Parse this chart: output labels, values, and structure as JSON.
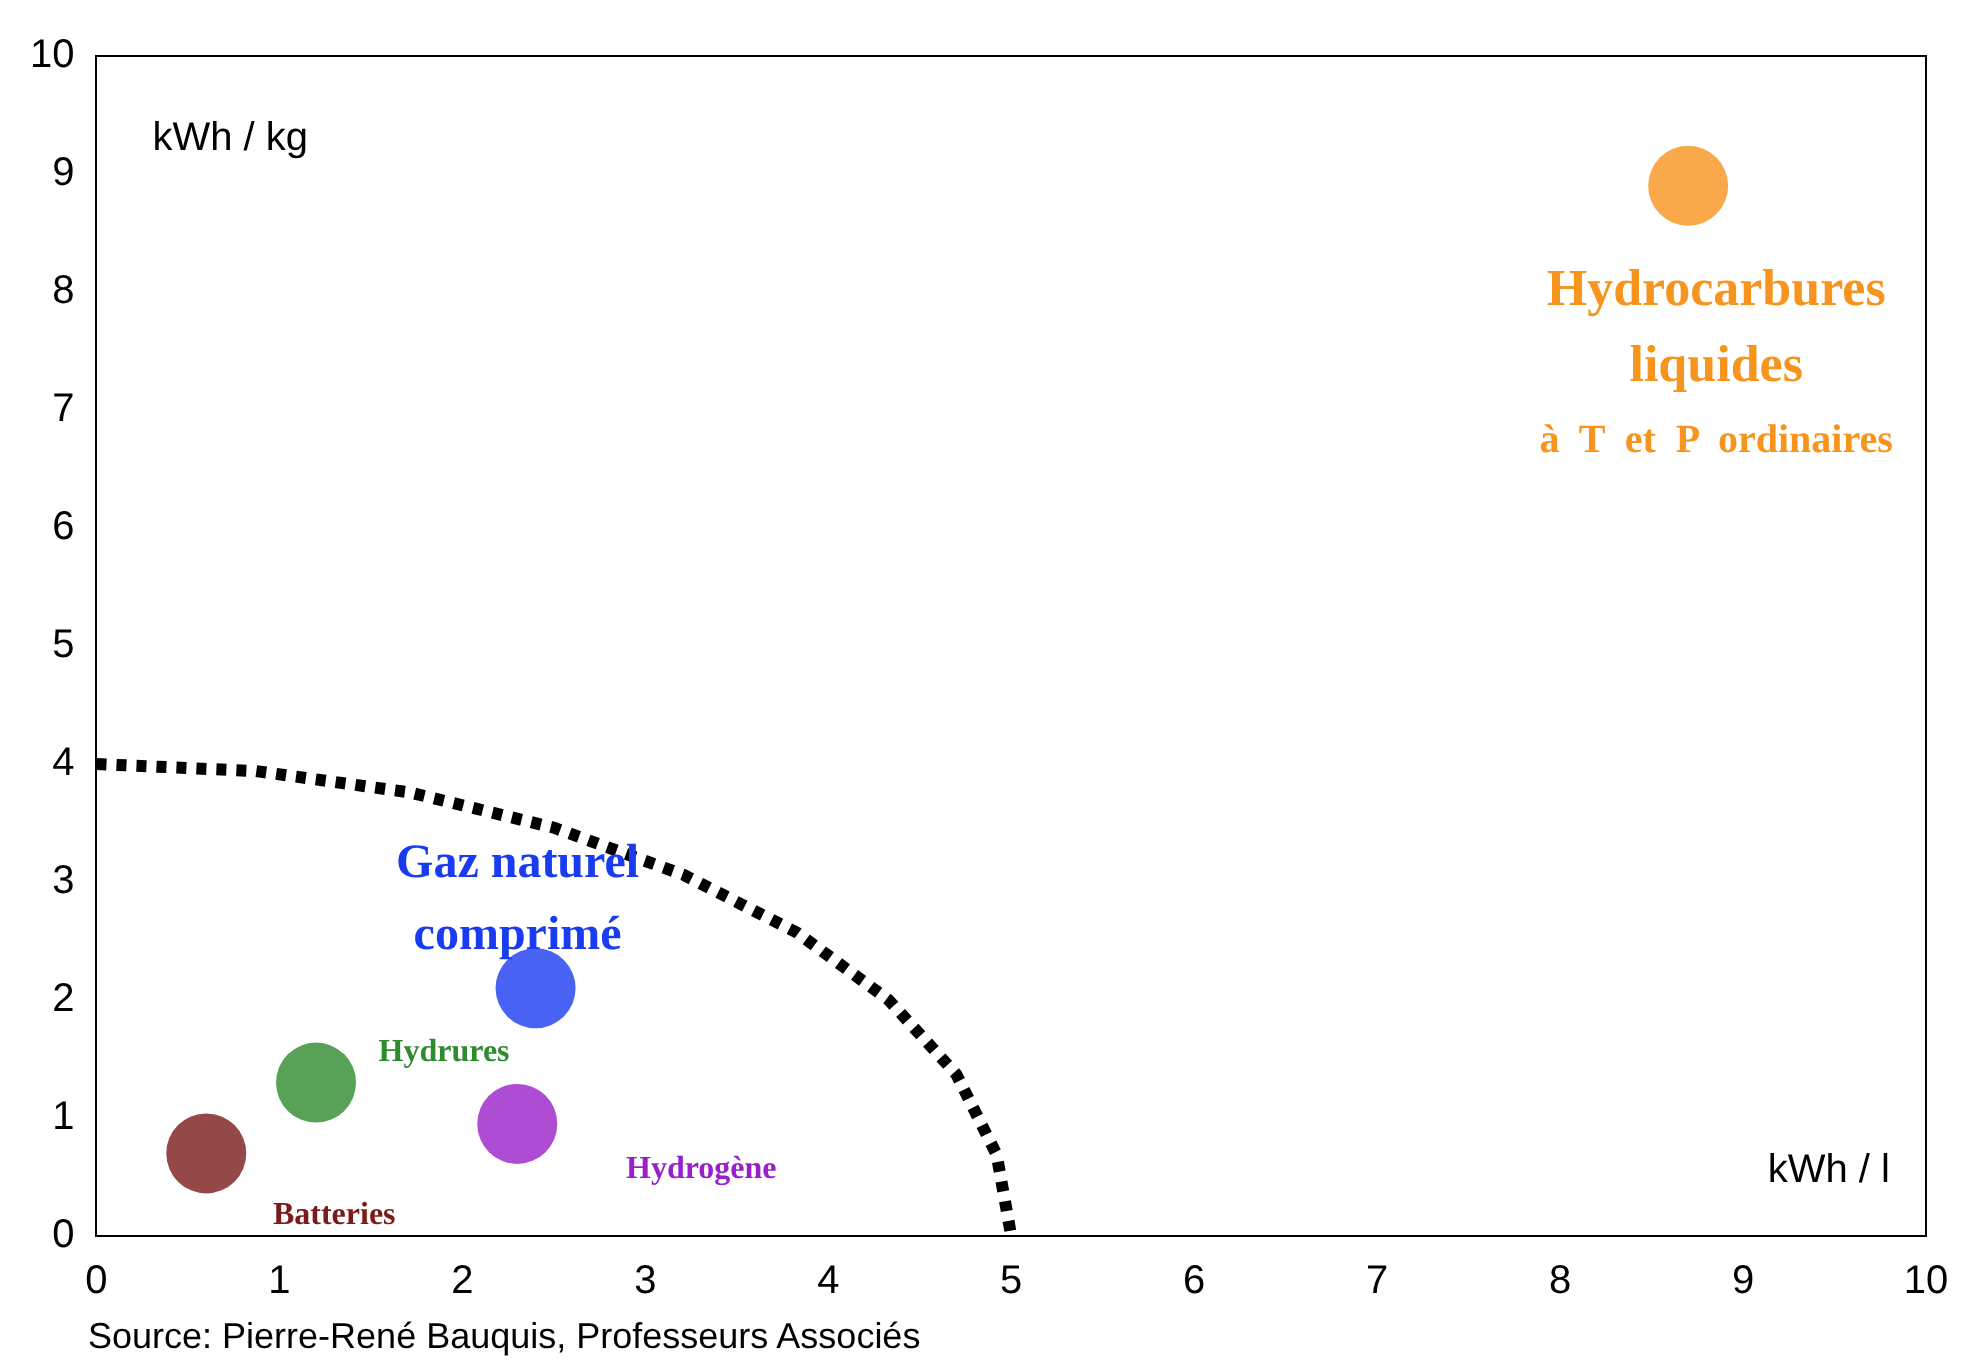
{
  "chart_data": {
    "type": "scatter",
    "xlabel": "kWh / l",
    "ylabel": "kWh / kg",
    "xlim": [
      0,
      10
    ],
    "ylim": [
      0,
      10
    ],
    "xticks": [
      0,
      1,
      2,
      3,
      4,
      5,
      6,
      7,
      8,
      9,
      10
    ],
    "yticks": [
      0,
      1,
      2,
      3,
      4,
      5,
      6,
      7,
      8,
      9,
      10
    ],
    "grid": false,
    "legend": false,
    "marker": "circle",
    "series": [
      {
        "name": "Hydrocarbures liquides",
        "color": "#f7941d",
        "x": [
          8.7
        ],
        "values": [
          8.9
        ]
      },
      {
        "name": "Gaz naturel comprimé",
        "color": "#1a3cf0",
        "x": [
          2.4
        ],
        "values": [
          2.1
        ]
      },
      {
        "name": "Hydrures",
        "color": "#2e8b2e",
        "x": [
          1.2
        ],
        "values": [
          1.3
        ]
      },
      {
        "name": "Hydrogène",
        "color": "#9b1fc9",
        "x": [
          2.3
        ],
        "values": [
          0.95
        ]
      },
      {
        "name": "Batteries",
        "color": "#7a1a1a",
        "x": [
          0.6
        ],
        "values": [
          0.7
        ]
      },
      {
        "type": "line",
        "color": "#000000",
        "line_style": "dotted",
        "marker": "none",
        "x": [
          0,
          0.87,
          1.71,
          2.5,
          3.21,
          3.83,
          4.33,
          4.7,
          4.92,
          5
        ],
        "values": [
          4,
          3.94,
          3.76,
          3.46,
          3.06,
          2.57,
          2,
          1.37,
          0.69,
          0
        ]
      }
    ],
    "annotations": [
      "à  T  et  P  ordinaires",
      "Source: Pierre-René Bauquis, Professeurs Associés"
    ]
  }
}
